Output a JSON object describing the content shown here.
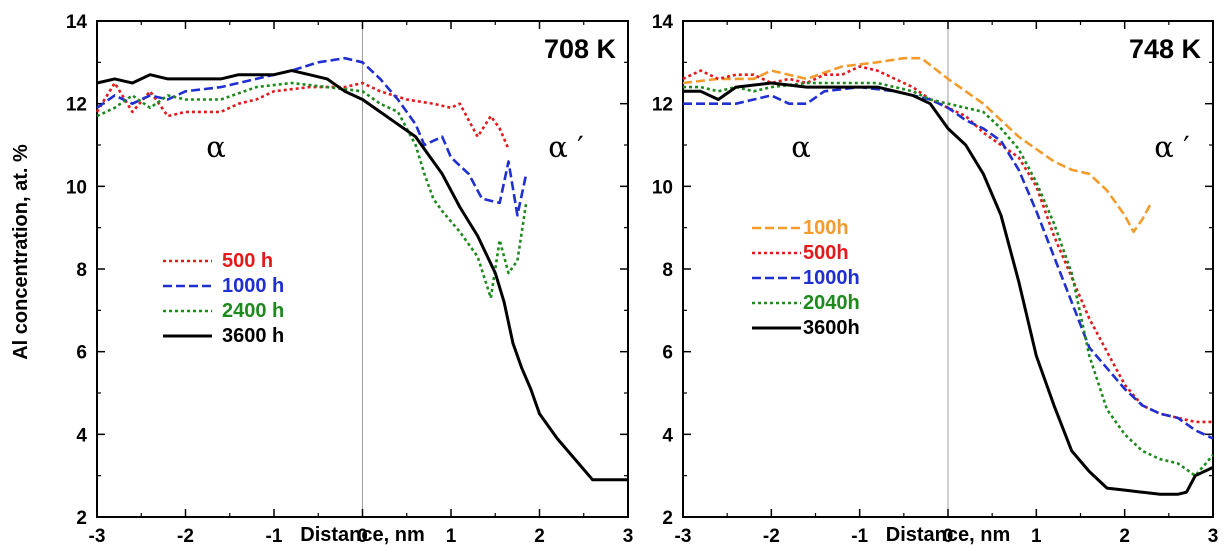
{
  "y_axis_label": "Al concentration, at. %",
  "chart_data": [
    {
      "type": "line",
      "title": "708 K",
      "xlabel": "Distance, nm",
      "ylabel": "Al concentration, at. %",
      "xlim": [
        -3,
        3
      ],
      "ylim": [
        2,
        14
      ],
      "xticks": [
        -3,
        -2,
        -1,
        0,
        1,
        2,
        3
      ],
      "yticks": [
        2,
        4,
        6,
        8,
        10,
        12,
        14
      ],
      "grid": false,
      "legend_position": "left",
      "annotations": [
        "α",
        "α ′"
      ],
      "series": [
        {
          "name": "500 h",
          "color": "#e31a1c",
          "dash": "dotted",
          "points": [
            [
              -3,
              11.8
            ],
            [
              -2.8,
              12.5
            ],
            [
              -2.6,
              11.8
            ],
            [
              -2.4,
              12.3
            ],
            [
              -2.2,
              11.7
            ],
            [
              -2.0,
              11.8
            ],
            [
              -1.6,
              11.8
            ],
            [
              -1.4,
              12.0
            ],
            [
              -1.2,
              12.1
            ],
            [
              -1.0,
              12.3
            ],
            [
              -0.6,
              12.4
            ],
            [
              -0.2,
              12.4
            ],
            [
              0.0,
              12.5
            ],
            [
              0.2,
              12.3
            ],
            [
              0.5,
              12.1
            ],
            [
              0.8,
              12.0
            ],
            [
              1.0,
              11.9
            ],
            [
              1.1,
              12.0
            ],
            [
              1.2,
              11.6
            ],
            [
              1.3,
              11.2
            ],
            [
              1.45,
              11.7
            ],
            [
              1.55,
              11.4
            ],
            [
              1.65,
              10.9
            ]
          ]
        },
        {
          "name": "1000 h",
          "color": "#1f2fd0",
          "dash": "dashed",
          "points": [
            [
              -3,
              11.9
            ],
            [
              -2.8,
              12.2
            ],
            [
              -2.6,
              12.0
            ],
            [
              -2.4,
              12.2
            ],
            [
              -2.2,
              12.1
            ],
            [
              -2.0,
              12.3
            ],
            [
              -1.6,
              12.4
            ],
            [
              -1.2,
              12.6
            ],
            [
              -0.8,
              12.8
            ],
            [
              -0.5,
              13.0
            ],
            [
              -0.2,
              13.1
            ],
            [
              0.0,
              13.0
            ],
            [
              0.2,
              12.6
            ],
            [
              0.4,
              12.1
            ],
            [
              0.6,
              11.5
            ],
            [
              0.7,
              11.0
            ],
            [
              0.9,
              11.2
            ],
            [
              1.0,
              10.7
            ],
            [
              1.2,
              10.3
            ],
            [
              1.35,
              9.7
            ],
            [
              1.55,
              9.6
            ],
            [
              1.65,
              10.6
            ],
            [
              1.75,
              9.3
            ],
            [
              1.85,
              10.3
            ]
          ]
        },
        {
          "name": "2400 h",
          "color": "#1e8a1e",
          "dash": "dotted",
          "points": [
            [
              -3,
              11.7
            ],
            [
              -2.8,
              11.9
            ],
            [
              -2.6,
              12.2
            ],
            [
              -2.4,
              11.9
            ],
            [
              -2.2,
              12.2
            ],
            [
              -2.0,
              12.1
            ],
            [
              -1.6,
              12.1
            ],
            [
              -1.2,
              12.4
            ],
            [
              -0.8,
              12.5
            ],
            [
              -0.4,
              12.4
            ],
            [
              0.0,
              12.3
            ],
            [
              0.2,
              12.0
            ],
            [
              0.4,
              11.8
            ],
            [
              0.6,
              11.0
            ],
            [
              0.7,
              10.3
            ],
            [
              0.8,
              9.7
            ],
            [
              0.9,
              9.4
            ],
            [
              1.1,
              8.9
            ],
            [
              1.3,
              8.3
            ],
            [
              1.45,
              7.3
            ],
            [
              1.55,
              8.7
            ],
            [
              1.65,
              7.9
            ],
            [
              1.75,
              8.2
            ],
            [
              1.85,
              9.6
            ]
          ]
        },
        {
          "name": "3600 h",
          "color": "#000000",
          "dash": "solid",
          "points": [
            [
              -3,
              12.5
            ],
            [
              -2.8,
              12.6
            ],
            [
              -2.6,
              12.5
            ],
            [
              -2.4,
              12.7
            ],
            [
              -2.2,
              12.6
            ],
            [
              -2.0,
              12.6
            ],
            [
              -1.6,
              12.6
            ],
            [
              -1.4,
              12.7
            ],
            [
              -1.0,
              12.7
            ],
            [
              -0.8,
              12.8
            ],
            [
              -0.6,
              12.7
            ],
            [
              -0.4,
              12.6
            ],
            [
              -0.2,
              12.3
            ],
            [
              0.0,
              12.1
            ],
            [
              0.2,
              11.8
            ],
            [
              0.4,
              11.5
            ],
            [
              0.6,
              11.2
            ],
            [
              0.7,
              10.9
            ],
            [
              0.9,
              10.3
            ],
            [
              1.1,
              9.5
            ],
            [
              1.3,
              8.8
            ],
            [
              1.5,
              7.9
            ],
            [
              1.6,
              7.2
            ],
            [
              1.7,
              6.2
            ],
            [
              1.8,
              5.6
            ],
            [
              1.9,
              5.1
            ],
            [
              2.0,
              4.5
            ],
            [
              2.2,
              3.9
            ],
            [
              2.4,
              3.4
            ],
            [
              2.6,
              2.9
            ],
            [
              2.8,
              2.9
            ],
            [
              3.0,
              2.9
            ]
          ]
        }
      ]
    },
    {
      "type": "line",
      "title": "748 K",
      "xlabel": "Distance, nm",
      "ylabel": "",
      "xlim": [
        -3,
        3
      ],
      "ylim": [
        2,
        14
      ],
      "xticks": [
        -3,
        -2,
        -1,
        0,
        1,
        2,
        3
      ],
      "yticks": [
        2,
        4,
        6,
        8,
        10,
        12,
        14
      ],
      "grid": false,
      "legend_position": "left",
      "annotations": [
        "α",
        "α ′"
      ],
      "series": [
        {
          "name": "100h",
          "color": "#f39c2c",
          "dash": "dashed",
          "points": [
            [
              -3,
              12.5
            ],
            [
              -2.6,
              12.6
            ],
            [
              -2.2,
              12.6
            ],
            [
              -2.0,
              12.8
            ],
            [
              -1.6,
              12.6
            ],
            [
              -1.2,
              12.9
            ],
            [
              -0.8,
              13.0
            ],
            [
              -0.5,
              13.1
            ],
            [
              -0.3,
              13.1
            ],
            [
              0.0,
              12.6
            ],
            [
              0.2,
              12.3
            ],
            [
              0.4,
              12.0
            ],
            [
              0.6,
              11.6
            ],
            [
              0.8,
              11.2
            ],
            [
              1.0,
              10.9
            ],
            [
              1.2,
              10.6
            ],
            [
              1.4,
              10.4
            ],
            [
              1.6,
              10.3
            ],
            [
              1.8,
              9.9
            ],
            [
              2.0,
              9.3
            ],
            [
              2.1,
              8.9
            ],
            [
              2.2,
              9.2
            ],
            [
              2.3,
              9.6
            ]
          ]
        },
        {
          "name": "500h",
          "color": "#e31a1c",
          "dash": "dotted",
          "points": [
            [
              -3,
              12.6
            ],
            [
              -2.8,
              12.8
            ],
            [
              -2.6,
              12.6
            ],
            [
              -2.4,
              12.7
            ],
            [
              -2.2,
              12.7
            ],
            [
              -2.0,
              12.5
            ],
            [
              -1.8,
              12.6
            ],
            [
              -1.6,
              12.5
            ],
            [
              -1.4,
              12.7
            ],
            [
              -1.2,
              12.7
            ],
            [
              -1.0,
              12.9
            ],
            [
              -0.8,
              12.8
            ],
            [
              -0.6,
              12.6
            ],
            [
              -0.4,
              12.4
            ],
            [
              -0.2,
              12.1
            ],
            [
              0.0,
              11.9
            ],
            [
              0.2,
              11.7
            ],
            [
              0.4,
              11.3
            ],
            [
              0.6,
              11.0
            ],
            [
              0.8,
              10.7
            ],
            [
              1.0,
              10.0
            ],
            [
              1.2,
              8.8
            ],
            [
              1.4,
              7.8
            ],
            [
              1.6,
              6.8
            ],
            [
              1.8,
              6.0
            ],
            [
              2.0,
              5.2
            ],
            [
              2.2,
              4.7
            ],
            [
              2.4,
              4.5
            ],
            [
              2.6,
              4.4
            ],
            [
              2.8,
              4.3
            ],
            [
              3.0,
              4.3
            ]
          ]
        },
        {
          "name": "1000h",
          "color": "#1f2fd0",
          "dash": "dashed",
          "points": [
            [
              -3,
              12.0
            ],
            [
              -2.8,
              12.0
            ],
            [
              -2.6,
              12.0
            ],
            [
              -2.4,
              12.0
            ],
            [
              -2.2,
              12.1
            ],
            [
              -2.0,
              12.2
            ],
            [
              -1.8,
              12.0
            ],
            [
              -1.6,
              12.0
            ],
            [
              -1.4,
              12.3
            ],
            [
              -1.0,
              12.4
            ],
            [
              -0.6,
              12.3
            ],
            [
              -0.2,
              12.1
            ],
            [
              0.0,
              11.9
            ],
            [
              0.2,
              11.6
            ],
            [
              0.4,
              11.4
            ],
            [
              0.6,
              11.1
            ],
            [
              0.8,
              10.4
            ],
            [
              1.0,
              9.4
            ],
            [
              1.2,
              8.3
            ],
            [
              1.4,
              7.2
            ],
            [
              1.6,
              6.1
            ],
            [
              1.8,
              5.6
            ],
            [
              2.0,
              5.1
            ],
            [
              2.2,
              4.7
            ],
            [
              2.4,
              4.5
            ],
            [
              2.6,
              4.4
            ],
            [
              2.8,
              4.1
            ],
            [
              3.0,
              3.9
            ]
          ]
        },
        {
          "name": "2040h",
          "color": "#1e8a1e",
          "dash": "dotted",
          "points": [
            [
              -3,
              12.4
            ],
            [
              -2.8,
              12.4
            ],
            [
              -2.6,
              12.3
            ],
            [
              -2.4,
              12.4
            ],
            [
              -2.2,
              12.3
            ],
            [
              -2.0,
              12.4
            ],
            [
              -1.6,
              12.5
            ],
            [
              -1.2,
              12.5
            ],
            [
              -0.8,
              12.5
            ],
            [
              -0.4,
              12.3
            ],
            [
              -0.2,
              12.1
            ],
            [
              0.0,
              12.0
            ],
            [
              0.2,
              11.9
            ],
            [
              0.4,
              11.8
            ],
            [
              0.6,
              11.4
            ],
            [
              0.8,
              10.9
            ],
            [
              1.0,
              10.1
            ],
            [
              1.2,
              9.1
            ],
            [
              1.4,
              7.9
            ],
            [
              1.5,
              6.9
            ],
            [
              1.6,
              5.9
            ],
            [
              1.8,
              4.6
            ],
            [
              2.0,
              4.0
            ],
            [
              2.2,
              3.6
            ],
            [
              2.4,
              3.4
            ],
            [
              2.6,
              3.3
            ],
            [
              2.8,
              3.0
            ],
            [
              3.0,
              3.5
            ]
          ]
        },
        {
          "name": "3600h",
          "color": "#000000",
          "dash": "solid",
          "points": [
            [
              -3,
              12.3
            ],
            [
              -2.8,
              12.3
            ],
            [
              -2.6,
              12.1
            ],
            [
              -2.4,
              12.4
            ],
            [
              -2.0,
              12.5
            ],
            [
              -1.6,
              12.4
            ],
            [
              -1.2,
              12.4
            ],
            [
              -0.8,
              12.4
            ],
            [
              -0.4,
              12.2
            ],
            [
              -0.2,
              12.0
            ],
            [
              0.0,
              11.4
            ],
            [
              0.2,
              11.0
            ],
            [
              0.4,
              10.3
            ],
            [
              0.6,
              9.3
            ],
            [
              0.8,
              7.7
            ],
            [
              1.0,
              5.9
            ],
            [
              1.2,
              4.7
            ],
            [
              1.4,
              3.6
            ],
            [
              1.6,
              3.1
            ],
            [
              1.8,
              2.7
            ],
            [
              2.0,
              2.65
            ],
            [
              2.2,
              2.6
            ],
            [
              2.4,
              2.55
            ],
            [
              2.6,
              2.55
            ],
            [
              2.7,
              2.6
            ],
            [
              2.8,
              3.0
            ],
            [
              3.0,
              3.2
            ]
          ]
        }
      ]
    }
  ]
}
